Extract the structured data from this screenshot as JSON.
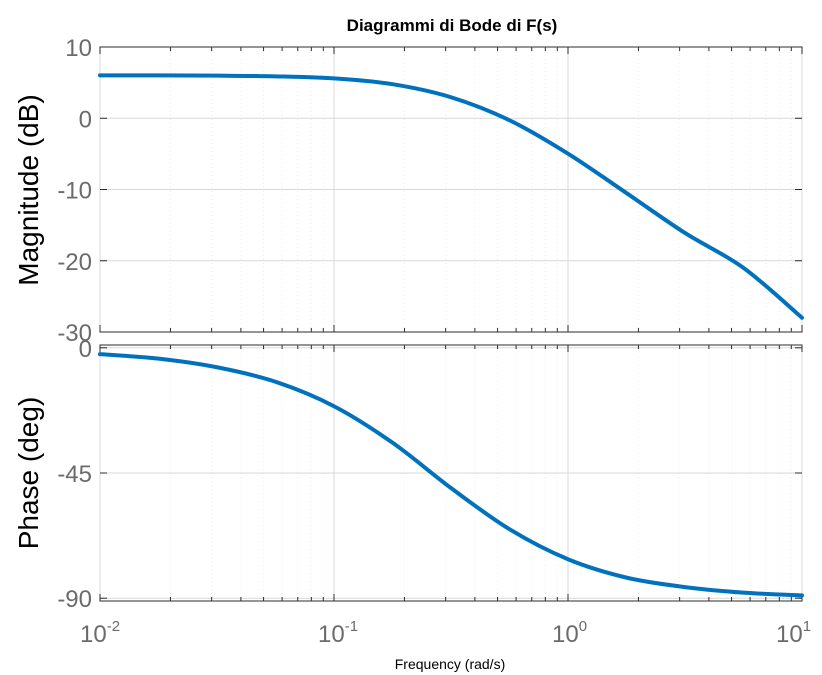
{
  "chart_data": {
    "type": "line",
    "title": "Diagrammi di Bode di F(s)",
    "xlabel": "Frequency  (rad/s)",
    "xscale": "log",
    "xlim": [
      0.01,
      10
    ],
    "xticks": [
      {
        "base": "10",
        "exp": "-2",
        "value": 0.01
      },
      {
        "base": "10",
        "exp": "-1",
        "value": 0.1
      },
      {
        "base": "10",
        "exp": "0",
        "value": 1
      },
      {
        "base": "10",
        "exp": "1",
        "value": 10
      }
    ],
    "grid": true,
    "color": "#0072bd",
    "panels": [
      {
        "name": "magnitude",
        "ylabel": "Magnitude (dB)",
        "ylim": [
          -30,
          10
        ],
        "yticks": [
          "10",
          "0",
          "-10",
          "-20",
          "-30"
        ],
        "series": {
          "x": [
            0.01,
            0.0178,
            0.0316,
            0.0562,
            0.1,
            0.1778,
            0.3162,
            0.5623,
            1,
            1.778,
            3.162,
            5.623,
            10
          ],
          "y": [
            6.02,
            6.01,
            5.98,
            5.88,
            5.59,
            4.78,
            2.95,
            -0.28,
            -4.97,
            -10.5,
            -16.1,
            -21.0,
            -28.0
          ]
        }
      },
      {
        "name": "phase",
        "ylabel": "Phase (deg)",
        "ylim": [
          -91,
          1
        ],
        "yticks": [
          "0",
          "-45",
          "-90"
        ],
        "series": {
          "x": [
            0.01,
            0.0178,
            0.0316,
            0.0562,
            0.1,
            0.1778,
            0.3162,
            0.5623,
            1,
            1.778,
            3.162,
            5.623,
            10
          ],
          "y": [
            -2.3,
            -3.9,
            -7.0,
            -12.2,
            -21.0,
            -34.1,
            -50.4,
            -65.2,
            -76.0,
            -82.6,
            -86.0,
            -88.0,
            -89.0
          ]
        }
      }
    ]
  }
}
